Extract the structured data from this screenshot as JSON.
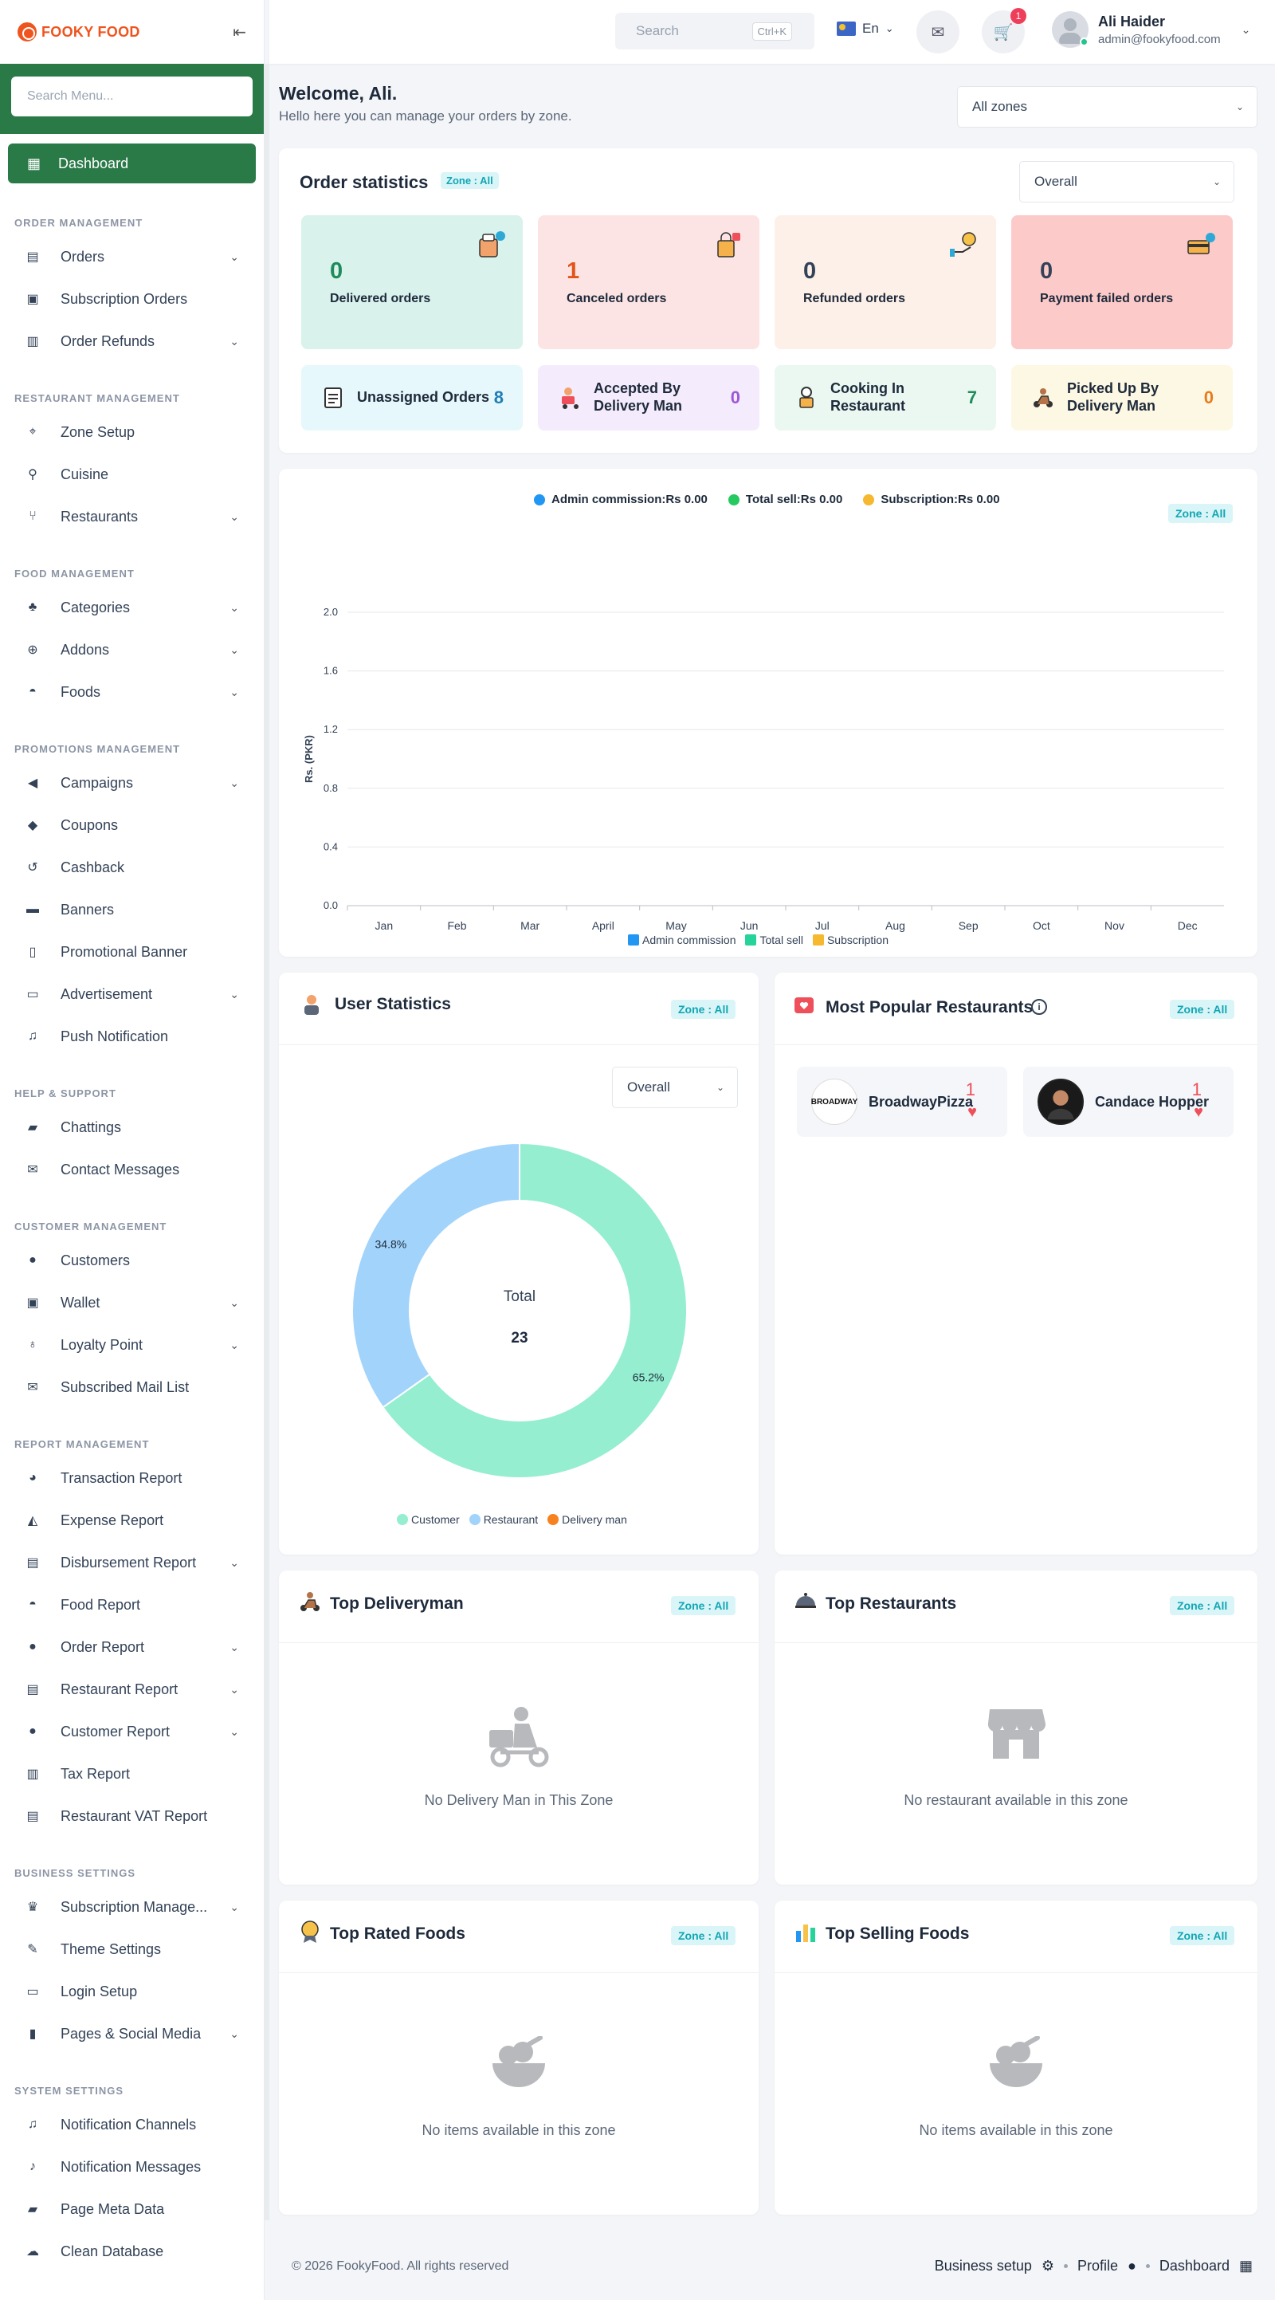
{
  "brand": {
    "name": "FOOKY FOOD"
  },
  "sidebar": {
    "search_placeholder": "Search Menu...",
    "active": "Dashboard",
    "sections": {
      "order": "ORDER MANAGEMENT",
      "restaurant": "RESTAURANT MANAGEMENT",
      "food": "FOOD MANAGEMENT",
      "promotions": "PROMOTIONS MANAGEMENT",
      "help": "HELP & SUPPORT",
      "customer": "CUSTOMER MANAGEMENT",
      "report": "REPORT MANAGEMENT",
      "business": "BUSINESS SETTINGS",
      "system": "SYSTEM SETTINGS"
    },
    "items": {
      "orders": "Orders",
      "subscription_orders": "Subscription Orders",
      "order_refunds": "Order Refunds",
      "zone_setup": "Zone Setup",
      "cuisine": "Cuisine",
      "restaurants": "Restaurants",
      "categories": "Categories",
      "addons": "Addons",
      "foods": "Foods",
      "campaigns": "Campaigns",
      "coupons": "Coupons",
      "cashback": "Cashback",
      "banners": "Banners",
      "promotional_banner": "Promotional Banner",
      "advertisement": "Advertisement",
      "push_notification": "Push Notification",
      "chattings": "Chattings",
      "contact_messages": "Contact Messages",
      "customers": "Customers",
      "wallet": "Wallet",
      "loyalty_point": "Loyalty Point",
      "subscribed_mail_list": "Subscribed Mail List",
      "transaction_report": "Transaction Report",
      "expense_report": "Expense Report",
      "disbursement_report": "Disbursement Report",
      "food_report": "Food Report",
      "order_report": "Order Report",
      "restaurant_report": "Restaurant Report",
      "customer_report": "Customer Report",
      "tax_report": "Tax Report",
      "restaurant_vat_report": "Restaurant VAT Report",
      "subscription_management": "Subscription Manage...",
      "theme_settings": "Theme Settings",
      "login_setup": "Login Setup",
      "pages_social": "Pages & Social Media",
      "notification_channels": "Notification Channels",
      "notification_messages": "Notification Messages",
      "page_meta_data": "Page Meta Data",
      "clean_database": "Clean Database"
    }
  },
  "header": {
    "search_placeholder": "Search",
    "search_shortcut": "Ctrl+K",
    "language": "En",
    "cart_badge": "1",
    "user_name": "Ali Haider",
    "user_email": "admin@fookyfood.com"
  },
  "welcome": {
    "title": "Welcome, Ali.",
    "subtitle": "Hello here you can manage your orders by zone.",
    "zone_select": "All zones"
  },
  "order_stats": {
    "title": "Order statistics",
    "zone": "Zone : All",
    "filter": "Overall",
    "cards": [
      {
        "value": "0",
        "label": "Delivered orders"
      },
      {
        "value": "1",
        "label": "Canceled orders"
      },
      {
        "value": "0",
        "label": "Refunded orders"
      },
      {
        "value": "0",
        "label": "Payment failed orders"
      }
    ],
    "mini": [
      {
        "label": "Unassigned Orders",
        "value": "8"
      },
      {
        "label": "Accepted By Delivery Man",
        "value": "0"
      },
      {
        "label": "Cooking In Restaurant",
        "value": "7"
      },
      {
        "label": "Picked Up By Delivery Man",
        "value": "0"
      }
    ]
  },
  "earnings_chart": {
    "legend_top": [
      "Admin commission:Rs 0.00",
      "Total sell:Rs 0.00",
      "Subscription:Rs 0.00"
    ],
    "zone": "Zone : All",
    "colors": {
      "admin": "#2196f3",
      "total": "#26d39a",
      "subscription": "#f5b82e"
    }
  },
  "chart_data": [
    {
      "type": "bar",
      "ylabel": "Rs. (PKR)",
      "ylim": [
        0,
        2.0
      ],
      "yticks": [
        "0.0",
        "0.4",
        "0.8",
        "1.2",
        "1.6",
        "2.0"
      ],
      "categories": [
        "Jan",
        "Feb",
        "Mar",
        "April",
        "May",
        "Jun",
        "Jul",
        "Aug",
        "Sep",
        "Oct",
        "Nov",
        "Dec"
      ],
      "series": [
        {
          "name": "Admin commission",
          "values": [
            0,
            0,
            0,
            0,
            0,
            0,
            0,
            0,
            0,
            0,
            0,
            0
          ]
        },
        {
          "name": "Total sell",
          "values": [
            0,
            0,
            0,
            0,
            0,
            0,
            0,
            0,
            0,
            0,
            0,
            0
          ]
        },
        {
          "name": "Subscription",
          "values": [
            0,
            0,
            0,
            0,
            0,
            0,
            0,
            0,
            0,
            0,
            0,
            0
          ]
        }
      ],
      "legend": "bottom",
      "grid": true
    },
    {
      "type": "pie",
      "categories": [
        "Customer",
        "Restaurant",
        "Delivery man"
      ],
      "values": [
        65.2,
        34.8,
        0
      ],
      "labels": [
        "65.2%",
        "34.8%"
      ],
      "center_label": "Total",
      "center_value": "23",
      "colors": [
        "#94eecf",
        "#a2d3fb",
        "#f7811f"
      ],
      "legend": "bottom"
    }
  ],
  "user_stats": {
    "title": "User Statistics",
    "zone": "Zone : All",
    "filter": "Overall"
  },
  "popular": {
    "title": "Most Popular Restaurants",
    "zone": "Zone : All",
    "items": [
      {
        "name": "BroadwayPizza",
        "count": "1",
        "logo": "BROADWAY"
      },
      {
        "name": "Candace Hopper",
        "count": "1"
      }
    ]
  },
  "top_delivery": {
    "title": "Top Deliveryman",
    "zone": "Zone : All",
    "empty": "No Delivery Man in This Zone"
  },
  "top_restaurants": {
    "title": "Top Restaurants",
    "zone": "Zone : All",
    "empty": "No restaurant available in this zone"
  },
  "top_rated": {
    "title": "Top Rated Foods",
    "zone": "Zone : All",
    "empty": "No items available in this zone"
  },
  "top_selling": {
    "title": "Top Selling Foods",
    "zone": "Zone : All",
    "empty": "No items available in this zone"
  },
  "footer": {
    "copyright": "© 2026 FookyFood. All rights reserved",
    "business": "Business setup",
    "profile": "Profile",
    "dashboard": "Dashboard"
  }
}
